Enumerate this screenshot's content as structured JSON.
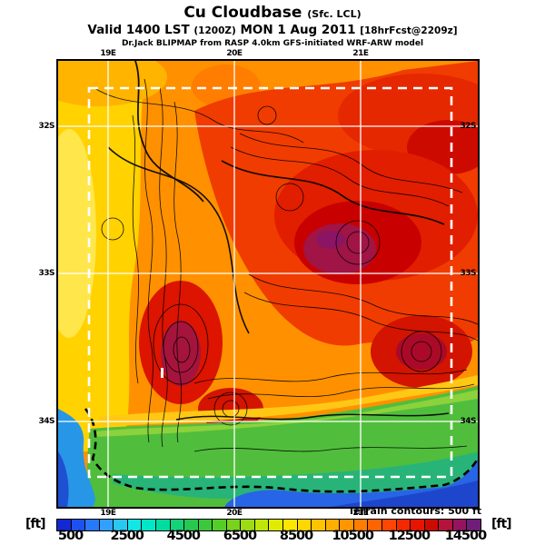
{
  "title": {
    "main": "Cu Cloudbase",
    "qualifier": "(Sfc. LCL)"
  },
  "subtitle": {
    "valid": "Valid 1400 LST",
    "zulu": "(1200Z)",
    "date": "MON 1 Aug 2011",
    "fcst": "[18hrFcst@2209z]"
  },
  "model_line": "Dr.Jack BLIPMAP from RASP 4.0km GFS-initiated WRF-ARW model",
  "map": {
    "lon_labels": [
      "19E",
      "20E",
      "21E"
    ],
    "lat_labels": [
      "32S",
      "33S",
      "34S"
    ]
  },
  "terrain_note": "Terrain contours: 500 ft",
  "colorbar": {
    "unit_left": "[ft]",
    "unit_right": "[ft]",
    "ticks": [
      "500",
      "2500",
      "4500",
      "6500",
      "8500",
      "10500",
      "12500",
      "14500"
    ],
    "segments": [
      "#1428d2",
      "#1e50f0",
      "#2878fa",
      "#32a0ff",
      "#28c8f0",
      "#14e6e6",
      "#00e6c8",
      "#00dca0",
      "#14d278",
      "#28c850",
      "#3cc83c",
      "#55cd28",
      "#78d21e",
      "#9bdc14",
      "#bee60a",
      "#e1eb00",
      "#fae600",
      "#ffd700",
      "#ffc300",
      "#ffaf00",
      "#ff9600",
      "#ff7d00",
      "#ff6400",
      "#ff4600",
      "#f52800",
      "#e61400",
      "#cd0a00",
      "#b4143c",
      "#96145f",
      "#6e1e78"
    ]
  },
  "chart_data": {
    "type": "heatmap",
    "title": "Cu Cloudbase (Sfc. LCL)",
    "valid_time": "1400 LST (1200Z) MON 1 Aug 2011",
    "forecast_tag": "18hrFcst@2209z",
    "model": "Dr.Jack BLIPMAP from RASP 4.0km GFS-initiated WRF-ARW model",
    "units": "ft",
    "scale": {
      "min": 0,
      "max": 15000,
      "step": 500,
      "tick_values": [
        500,
        2500,
        4500,
        6500,
        8500,
        10500,
        12500,
        14500
      ]
    },
    "x_gridlines": [
      "19E",
      "20E",
      "21E"
    ],
    "y_gridlines": [
      "32S",
      "33S",
      "34S"
    ],
    "annotations": [
      "Terrain contours: 500 ft",
      "white dashed rectangle = model domain boundary"
    ],
    "value_summary": {
      "interior_plateau_ft": "9500-12500",
      "northeast_and_central_mountain_maxima_ft": "13000-15000",
      "west_coast_strip_ft": "7500-9000",
      "south_coast_land_ft": "4000-6500",
      "ocean_south_and_west_ft": "500-3000"
    }
  }
}
